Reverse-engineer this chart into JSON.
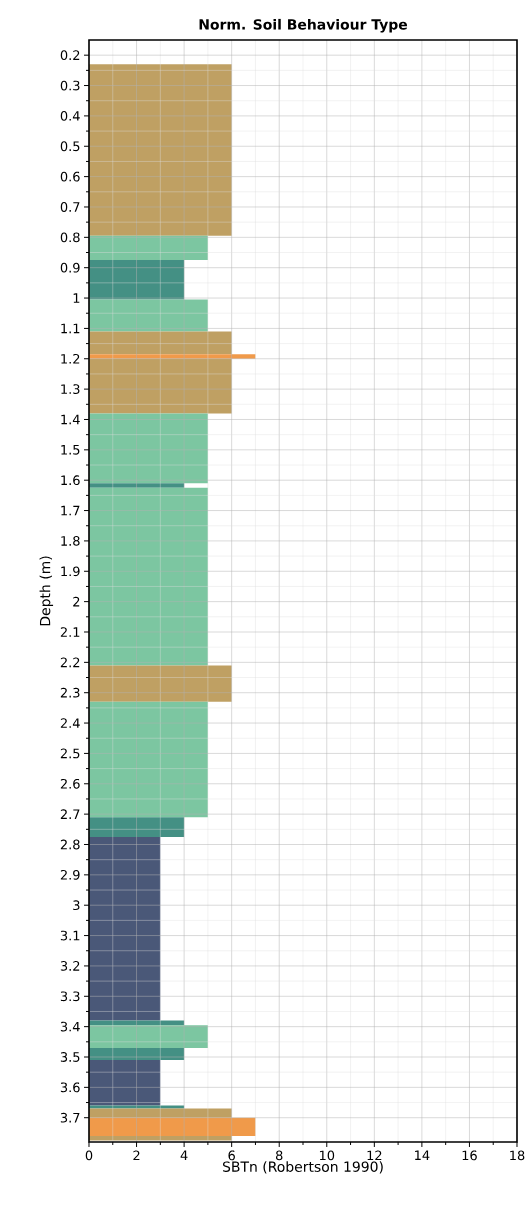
{
  "chart_data": {
    "type": "histogram",
    "orientation": "horizontal",
    "title": "Norm. Soil Behaviour Type",
    "xlabel": "SBTn (Robertson 1990)",
    "ylabel": "Depth (m)",
    "bins": [
      0.23,
      0.795,
      0.875,
      1.005,
      1.11,
      1.185,
      1.2,
      1.38,
      1.61,
      1.625,
      2.21,
      2.33,
      2.71,
      2.775,
      3.38,
      3.395,
      3.47,
      3.51,
      3.66,
      3.67,
      3.7,
      3.76,
      3.775
    ],
    "values": [
      6,
      5,
      4,
      5,
      6,
      7,
      6,
      5,
      4,
      5,
      6,
      5,
      4,
      3,
      4,
      5,
      4,
      3,
      4,
      6,
      7,
      6
    ],
    "colors": [
      "#bfa063",
      "#7cc6a1",
      "#449084",
      "#7cc6a1",
      "#bfa063",
      "#f09a4a",
      "#bfa063",
      "#7cc6a1",
      "#449084",
      "#7cc6a1",
      "#bfa063",
      "#7cc6a1",
      "#449084",
      "#4a5878",
      "#449084",
      "#7cc6a1",
      "#449084",
      "#4a5878",
      "#449084",
      "#bfa063",
      "#f09a4a",
      "#bfa063"
    ],
    "xlim": [
      0,
      18
    ],
    "xticks": [
      0,
      2,
      4,
      6,
      8,
      10,
      12,
      14,
      16,
      18
    ],
    "ylim": [
      3.78,
      0.15
    ],
    "yticks": [
      0.2,
      0.3,
      0.4,
      0.5,
      0.6,
      0.7,
      0.8,
      0.9,
      1,
      1.1,
      1.2,
      1.3,
      1.4,
      1.5,
      1.6,
      1.7,
      1.8,
      1.9,
      2,
      2.1,
      2.2,
      2.3,
      2.4,
      2.5,
      2.6,
      2.7,
      2.8,
      2.9,
      3,
      3.1,
      3.2,
      3.3,
      3.4,
      3.5,
      3.6,
      3.7
    ],
    "grid": true
  }
}
